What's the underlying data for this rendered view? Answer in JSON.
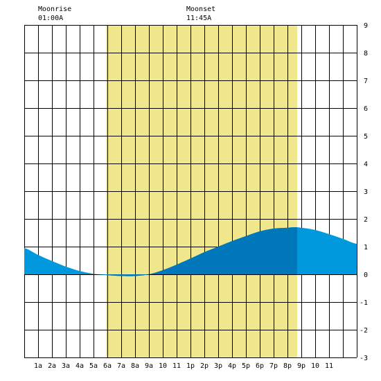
{
  "moon": {
    "moonrise_label": "Moonrise",
    "moonrise_time": "01:00A",
    "moonset_label": "Moonset",
    "moonset_time": "11:45A"
  },
  "colors": {
    "daylight": "#F0E68C",
    "tide_fill": "#0099DD",
    "tide_fill_daylight": "#0077BB",
    "grid": "#000000",
    "background": "#FFFFFF"
  },
  "chart_data": {
    "type": "area",
    "title": "",
    "xlabel": "",
    "ylabel": "",
    "x_tick_labels": [
      "1a",
      "2a",
      "3a",
      "4a",
      "5a",
      "6a",
      "7a",
      "8a",
      "9a",
      "10",
      "11",
      "1p",
      "2p",
      "3p",
      "4p",
      "5p",
      "6p",
      "7p",
      "8p",
      "9p",
      "10",
      "11"
    ],
    "xlim": [
      0,
      24
    ],
    "ylim": [
      -3,
      9
    ],
    "y_ticks": [
      -3,
      -2,
      -1,
      0,
      1,
      2,
      3,
      4,
      5,
      6,
      7,
      8,
      9
    ],
    "grid": true,
    "daylight_hours": [
      5.9,
      19.7
    ],
    "series": [
      {
        "x": [
          0,
          1,
          2,
          3,
          4,
          5,
          6,
          7,
          8,
          9,
          10,
          11,
          12,
          13,
          14,
          15,
          16,
          17,
          18,
          19,
          19.5,
          20,
          21,
          22,
          23,
          24
        ],
        "y": [
          0.95,
          0.7,
          0.48,
          0.28,
          0.12,
          0.02,
          -0.03,
          -0.06,
          -0.06,
          0.0,
          0.15,
          0.35,
          0.57,
          0.8,
          1.0,
          1.2,
          1.38,
          1.55,
          1.65,
          1.68,
          1.7,
          1.68,
          1.6,
          1.45,
          1.28,
          1.1
        ]
      }
    ]
  }
}
